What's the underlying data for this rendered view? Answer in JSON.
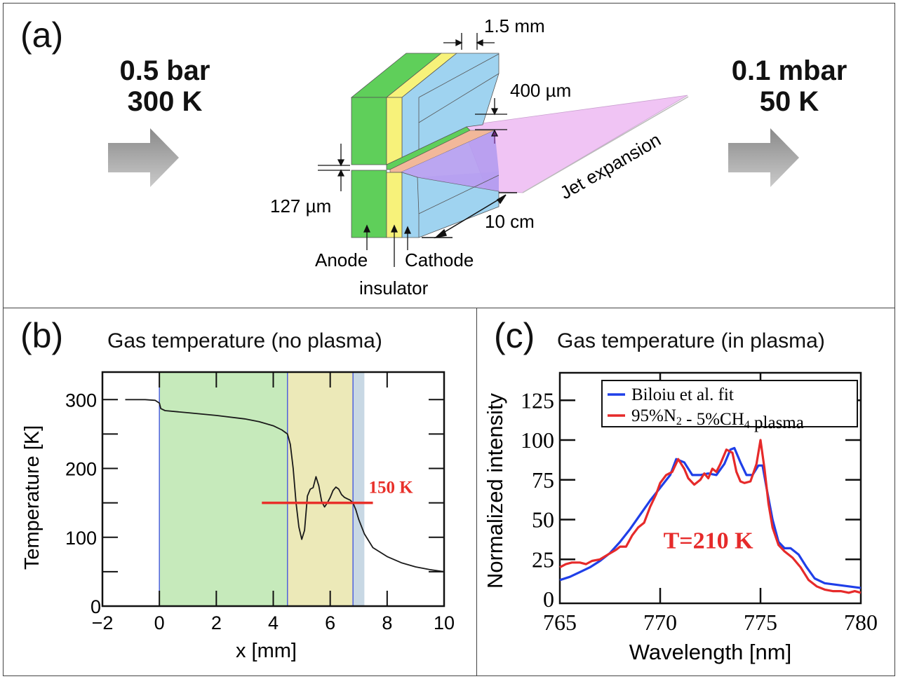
{
  "panel_a": {
    "label": "(a)",
    "inlet": {
      "pressure": "0.5 bar",
      "temperature": "300 K"
    },
    "outlet": {
      "pressure": "0.1 mbar",
      "temperature": "50 K"
    },
    "dimensions": {
      "electrode_thickness": "1.5 mm",
      "slit_width": "400 µm",
      "gap": "127 µm",
      "length": "10 cm"
    },
    "labels": {
      "jet": "Jet expansion",
      "anode": "Anode",
      "cathode": "Cathode",
      "insulator": "insulator"
    },
    "colors": {
      "anode": "#5fcf5a",
      "insulator": "#f7f27a",
      "cathode": "#9fd3f0",
      "plasma": "#b49cf0",
      "jet": "#f0c4f4",
      "arrow_dark": "#8a8a8a",
      "arrow_light": "#c4c4c4"
    }
  },
  "chart_data": [
    {
      "panel": "(b)",
      "type": "line",
      "title": "Gas temperature (no plasma)",
      "xlabel": "x [mm]",
      "ylabel": "Temperature [K]",
      "xlim": [
        -2,
        10
      ],
      "ylim": [
        0,
        340
      ],
      "xticks": [
        -2,
        0,
        2,
        4,
        6,
        8,
        10
      ],
      "xtick_labels": [
        "−2",
        "0",
        "2",
        "4",
        "6",
        "8",
        "10"
      ],
      "yticks": [
        0,
        100,
        200,
        300
      ],
      "ytick_labels": [
        "0",
        "100",
        "200",
        "300"
      ],
      "y_minor_ticks": [
        50,
        150,
        250
      ],
      "regions": [
        {
          "name": "anode",
          "x0": 0,
          "x1": 4.5,
          "color": "#c6eabb"
        },
        {
          "name": "insulator",
          "x0": 4.5,
          "x1": 6.8,
          "color": "#ece9b8"
        },
        {
          "name": "cathode",
          "x0": 6.8,
          "x1": 7.2,
          "color": "#c8d8e4"
        }
      ],
      "region_boundaries": [
        0,
        4.5,
        6.8
      ],
      "series": [
        {
          "name": "Gas temperature",
          "color": "#1a1a1a",
          "x": [
            -1.2,
            -0.5,
            -0.15,
            0.0,
            0.05,
            0.2,
            1,
            2,
            3,
            3.5,
            4.0,
            4.3,
            4.5,
            4.6,
            4.7,
            4.8,
            4.9,
            5.0,
            5.1,
            5.2,
            5.3,
            5.4,
            5.5,
            5.6,
            5.7,
            5.8,
            5.9,
            6.0,
            6.1,
            6.2,
            6.3,
            6.4,
            6.5,
            6.6,
            6.7,
            6.8,
            6.9,
            7.0,
            7.2,
            7.5,
            8.0,
            8.5,
            9.0,
            9.5,
            10.0
          ],
          "y": [
            300,
            300,
            299,
            295,
            287,
            284,
            281,
            277,
            272,
            268,
            262,
            256,
            250,
            235,
            200,
            150,
            115,
            97,
            110,
            160,
            170,
            172,
            188,
            175,
            152,
            144,
            150,
            158,
            168,
            173,
            170,
            162,
            158,
            156,
            154,
            150,
            140,
            126,
            105,
            85,
            72,
            63,
            57,
            53,
            50
          ]
        }
      ],
      "annotations": [
        {
          "text": "150 K",
          "kind": "hline",
          "y": 150,
          "x0": 3.6,
          "x1": 7.5,
          "color": "#e8302a"
        }
      ]
    },
    {
      "panel": "(c)",
      "type": "line",
      "title": "Gas temperature (in plasma)",
      "xlabel": "Wavelength [nm]",
      "ylabel": "Normalized intensity",
      "xlim": [
        765,
        780
      ],
      "ylim": [
        0,
        140
      ],
      "xticks": [
        765,
        770,
        775,
        780
      ],
      "xtick_labels": [
        "765",
        "770",
        "775",
        "780"
      ],
      "yticks": [
        0,
        25,
        50,
        75,
        100,
        125
      ],
      "ytick_labels": [
        "0",
        "25",
        "50",
        "75",
        "100",
        "125"
      ],
      "legend": {
        "position": "top-right"
      },
      "series": [
        {
          "name": "Biloiu et al. fit",
          "color": "#1f3fe8",
          "x": [
            765.0,
            765.5,
            766.0,
            766.5,
            767.0,
            767.5,
            768.0,
            768.5,
            769.0,
            769.5,
            770.0,
            770.5,
            770.8,
            771.2,
            771.6,
            772.0,
            772.4,
            772.8,
            773.2,
            773.5,
            773.7,
            774.0,
            774.3,
            774.6,
            774.9,
            775.1,
            775.3,
            775.6,
            775.9,
            776.2,
            776.5,
            776.9,
            777.3,
            777.7,
            778.2,
            778.8,
            779.4,
            780.0
          ],
          "y": [
            12,
            14,
            17,
            20,
            24,
            29,
            36,
            44,
            53,
            62,
            70,
            78,
            88,
            86,
            78,
            78,
            79,
            78,
            85,
            94,
            95,
            86,
            78,
            78,
            84,
            84,
            70,
            50,
            36,
            32,
            32,
            28,
            20,
            13,
            10,
            9,
            8,
            7
          ]
        },
        {
          "name": "95%N2 - 5%CH4 plasma",
          "label_main": "95%N",
          "label_sub1": "2",
          "label_mid": " - 5%CH",
          "label_sub2": "4",
          "label_end": " plasma",
          "color": "#e62a2a",
          "x": [
            765.0,
            765.3,
            765.6,
            766.0,
            766.3,
            766.6,
            767.0,
            767.4,
            767.8,
            768.0,
            768.3,
            768.6,
            768.9,
            769.2,
            769.5,
            769.8,
            770.0,
            770.3,
            770.6,
            770.9,
            771.2,
            771.4,
            771.7,
            772.0,
            772.2,
            772.4,
            772.6,
            772.8,
            773.0,
            773.3,
            773.6,
            773.8,
            774.0,
            774.2,
            774.5,
            774.8,
            775.0,
            775.2,
            775.4,
            775.6,
            775.9,
            776.2,
            776.6,
            777.0,
            777.4,
            777.8,
            778.2,
            778.6,
            779.0,
            779.4,
            779.7,
            780.0
          ],
          "y": [
            20,
            22,
            23,
            23,
            22,
            24,
            25,
            28,
            31,
            33,
            33,
            40,
            45,
            48,
            58,
            66,
            73,
            78,
            80,
            88,
            82,
            76,
            72,
            75,
            79,
            76,
            82,
            80,
            85,
            94,
            92,
            80,
            74,
            73,
            74,
            85,
            100,
            82,
            60,
            45,
            34,
            30,
            26,
            20,
            12,
            8,
            6,
            5,
            5,
            4,
            5,
            4
          ]
        }
      ],
      "annotations": [
        {
          "text": "T=210 K",
          "color": "#e62a2a",
          "at": [
            772.4,
            32
          ]
        }
      ]
    }
  ],
  "panel_b": {
    "label": "(b)"
  },
  "panel_c": {
    "label": "(c)"
  }
}
